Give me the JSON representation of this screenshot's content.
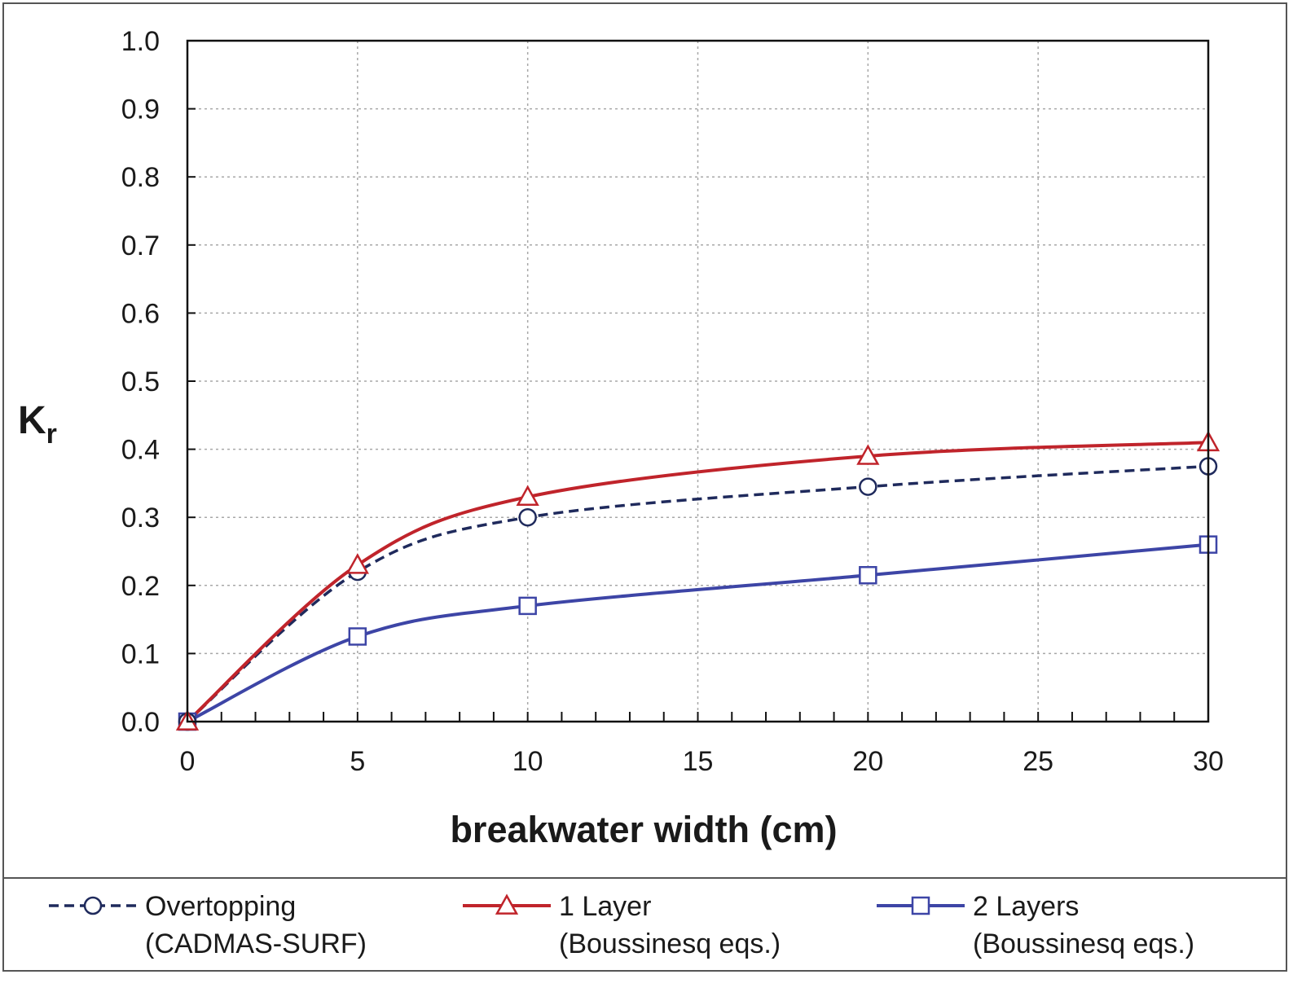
{
  "chart_data": {
    "type": "line",
    "title": "",
    "xlabel": "breakwater width (cm)",
    "ylabel": {
      "main": "K",
      "sub": "r"
    },
    "xlim": [
      0,
      30
    ],
    "ylim": [
      0.0,
      1.0
    ],
    "xticks": [
      0,
      5,
      10,
      15,
      20,
      25,
      30
    ],
    "xtick_labels": [
      "0",
      "5",
      "10",
      "15",
      "20",
      "25",
      "30"
    ],
    "yticks": [
      0.0,
      0.1,
      0.2,
      0.3,
      0.4,
      0.5,
      0.6,
      0.7,
      0.8,
      0.9,
      1.0
    ],
    "ytick_labels": [
      "0.0",
      "0.1",
      "0.2",
      "0.3",
      "0.4",
      "0.5",
      "0.6",
      "0.7",
      "0.8",
      "0.9",
      "1.0"
    ],
    "x_minor_step": 1,
    "grid": true,
    "legend": "bottom",
    "series": [
      {
        "name": [
          "Overtopping",
          "(CADMAS-SURF)"
        ],
        "color": "#1f2a5c",
        "marker": "circle",
        "dashed": true,
        "x": [
          0,
          5,
          10,
          20,
          30
        ],
        "values": [
          0.0,
          0.22,
          0.3,
          0.345,
          0.375
        ]
      },
      {
        "name": [
          "1 Layer",
          "(Boussinesq eqs.)"
        ],
        "color": "#c0242b",
        "marker": "triangle",
        "dashed": false,
        "x": [
          0,
          5,
          10,
          20,
          30
        ],
        "values": [
          0.0,
          0.23,
          0.33,
          0.39,
          0.41
        ]
      },
      {
        "name": [
          "2 Layers",
          "(Boussinesq eqs.)"
        ],
        "color": "#3d45a6",
        "marker": "square",
        "dashed": false,
        "x": [
          0,
          5,
          10,
          20,
          30
        ],
        "values": [
          0.0,
          0.125,
          0.17,
          0.215,
          0.26
        ]
      }
    ]
  }
}
